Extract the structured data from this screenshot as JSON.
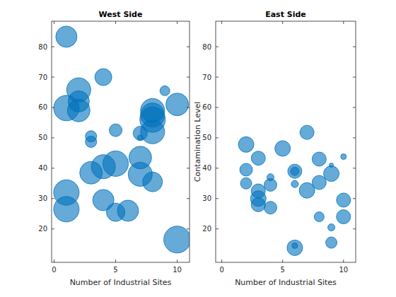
{
  "chart_data": [
    {
      "type": "bubble",
      "title": "West Side",
      "x_label": "Number of Industrial Sites",
      "x": [
        1,
        4,
        2,
        2,
        1,
        2,
        9,
        10,
        8,
        8,
        8,
        8,
        5,
        3,
        3,
        7,
        7,
        7,
        7,
        5,
        4,
        3,
        1,
        1,
        4,
        5,
        6,
        8,
        10
      ],
      "values": [
        83.3,
        70,
        65.8,
        62,
        59.8,
        59,
        65.5,
        61,
        59,
        57.5,
        56,
        52,
        52.5,
        50.5,
        48.7,
        51.5,
        50,
        43.5,
        38,
        41.5,
        40.5,
        38.5,
        32,
        26.5,
        29.5,
        25.5,
        26,
        35.5,
        16.5
      ],
      "sizes": [
        15,
        12,
        17,
        15,
        18,
        16,
        7,
        16,
        17,
        17,
        18,
        17,
        9,
        8,
        8,
        10,
        4,
        16,
        17,
        18,
        17,
        16,
        18,
        18,
        15,
        13,
        15,
        14,
        19
      ],
      "color": "#0072bd",
      "xlim": [
        -0.2,
        11
      ],
      "ylim": [
        9,
        88.4
      ],
      "xticks": [
        0,
        5,
        10
      ],
      "yticks": [
        20,
        30,
        40,
        50,
        60,
        70,
        80
      ]
    },
    {
      "type": "bubble",
      "title": "East Side",
      "x_label": "Number of Industrial Sites",
      "y_label": "Contamination Level",
      "x": [
        2,
        2,
        2,
        3,
        3,
        3,
        3,
        4,
        4,
        4,
        5,
        6,
        6,
        6,
        6,
        6,
        7,
        7,
        8,
        8,
        8,
        9,
        9,
        9,
        9,
        10,
        10,
        10
      ],
      "values": [
        47.8,
        39.5,
        35,
        43.3,
        32.5,
        30,
        28,
        37,
        34.5,
        27,
        46.5,
        39,
        39,
        34.8,
        14.5,
        13.8,
        51.8,
        32.7,
        43,
        35.3,
        24,
        38.2,
        41,
        20.5,
        15.5,
        43.8,
        29.5,
        24
      ],
      "sizes": [
        11,
        9,
        8,
        10,
        10,
        11,
        10,
        5,
        9,
        9,
        11,
        10,
        6,
        5,
        4,
        11,
        10,
        11,
        10,
        10,
        7,
        11,
        3,
        5,
        8,
        4,
        10,
        10
      ],
      "color": "#0072bd",
      "xlim": [
        -0.5,
        11
      ],
      "ylim": [
        9,
        88.4
      ],
      "xticks": [
        0,
        5,
        10
      ],
      "yticks": [
        20,
        30,
        40,
        50,
        60,
        70,
        80
      ]
    }
  ]
}
